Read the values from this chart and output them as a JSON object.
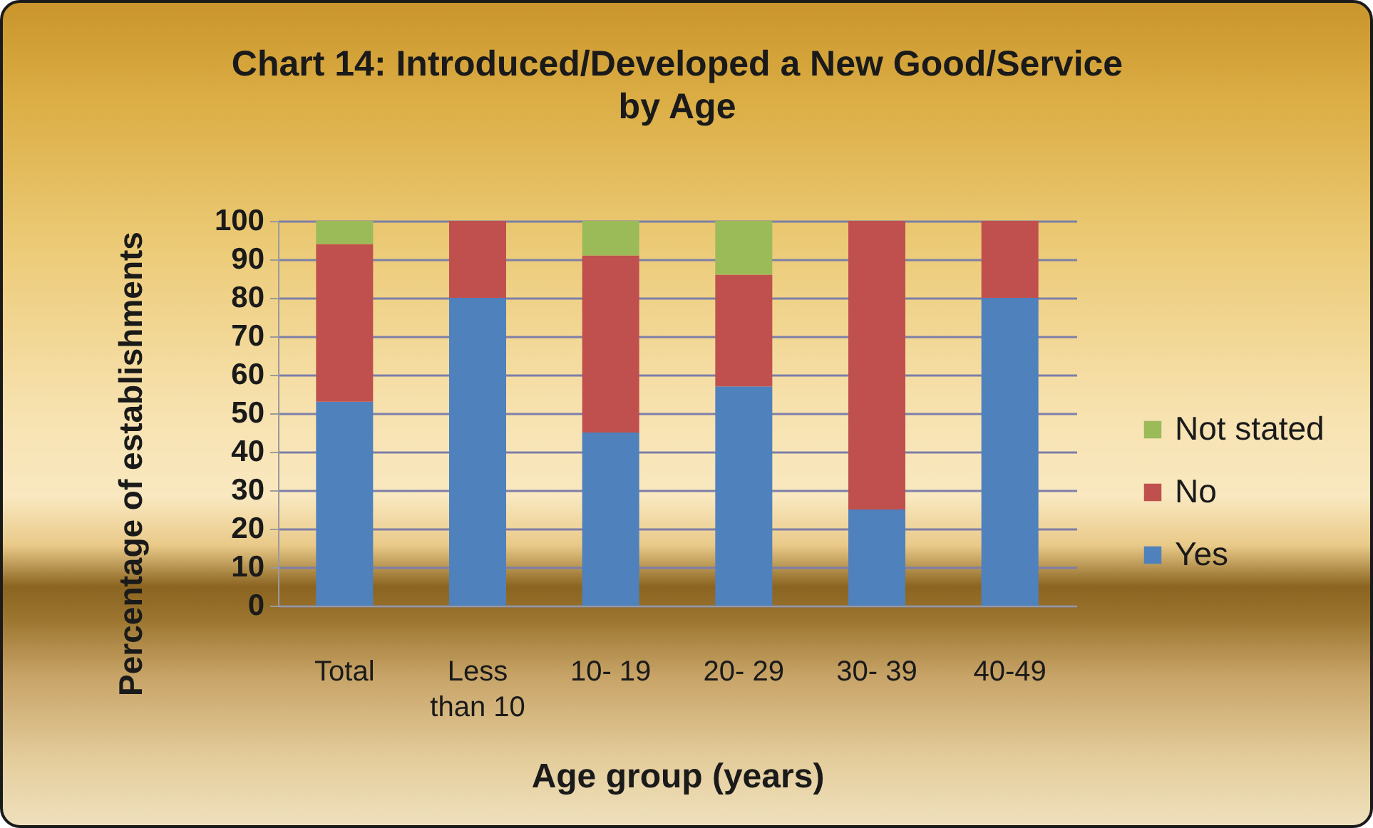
{
  "chart_data": {
    "type": "bar",
    "title": "Chart 14: Introduced/Developed a New Good/Service by Age",
    "xlabel": "Age group (years)",
    "ylabel": "Percentage of establishments",
    "categories": [
      "Total",
      "Less than 10",
      "10- 19",
      "20- 29",
      "30- 39",
      "40-49"
    ],
    "stacked": true,
    "series": [
      {
        "name": "Yes",
        "color": "#4f81bd",
        "values": [
          53,
          80,
          45,
          57,
          25,
          80
        ]
      },
      {
        "name": "No",
        "color": "#c0504d",
        "values": [
          41,
          20,
          46,
          29,
          75,
          20
        ]
      },
      {
        "name": "Not stated",
        "color": "#9bbb59",
        "values": [
          6,
          null,
          9,
          14,
          null,
          null
        ]
      }
    ],
    "ylim": [
      0,
      100
    ],
    "yticks": [
      0,
      10,
      20,
      30,
      40,
      50,
      60,
      70,
      80,
      90,
      100
    ],
    "grid": "y",
    "legend": "right"
  }
}
